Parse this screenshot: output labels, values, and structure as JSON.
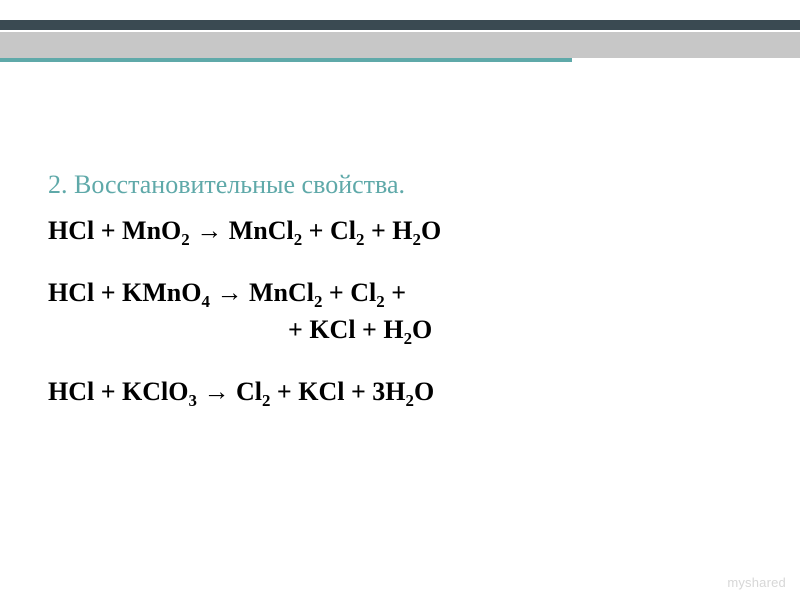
{
  "colors": {
    "background": "#ffffff",
    "band_dark": "#3a4a52",
    "band_gray": "#c7c7c7",
    "band_accent": "#5fa9a9",
    "heading": "#5fa9a9",
    "text": "#000000",
    "watermark": "#d7d7d7"
  },
  "typography": {
    "font_family": "Georgia, 'Times New Roman', serif",
    "heading_fontsize": 26,
    "equation_fontsize": 26,
    "equation_fontweight": "bold"
  },
  "heading": "2. Восстановительные свойства.",
  "equations": [
    {
      "html": "HCl + MnO<sub>2</sub> → MnCl<sub>2</sub> + Cl<sub>2</sub> + H<sub>2</sub>O"
    },
    {
      "html": "HCl + KMnO<sub>4</sub> → MnCl<sub>2</sub> + Cl<sub>2</sub> +"
    },
    {
      "html": "+ KCl + H<sub>2</sub>O",
      "continuation": true
    },
    {
      "html": "HCl + KClO<sub>3</sub> → Cl<sub>2</sub> + KCl + 3H<sub>2</sub>O"
    }
  ],
  "watermark": "myshared"
}
